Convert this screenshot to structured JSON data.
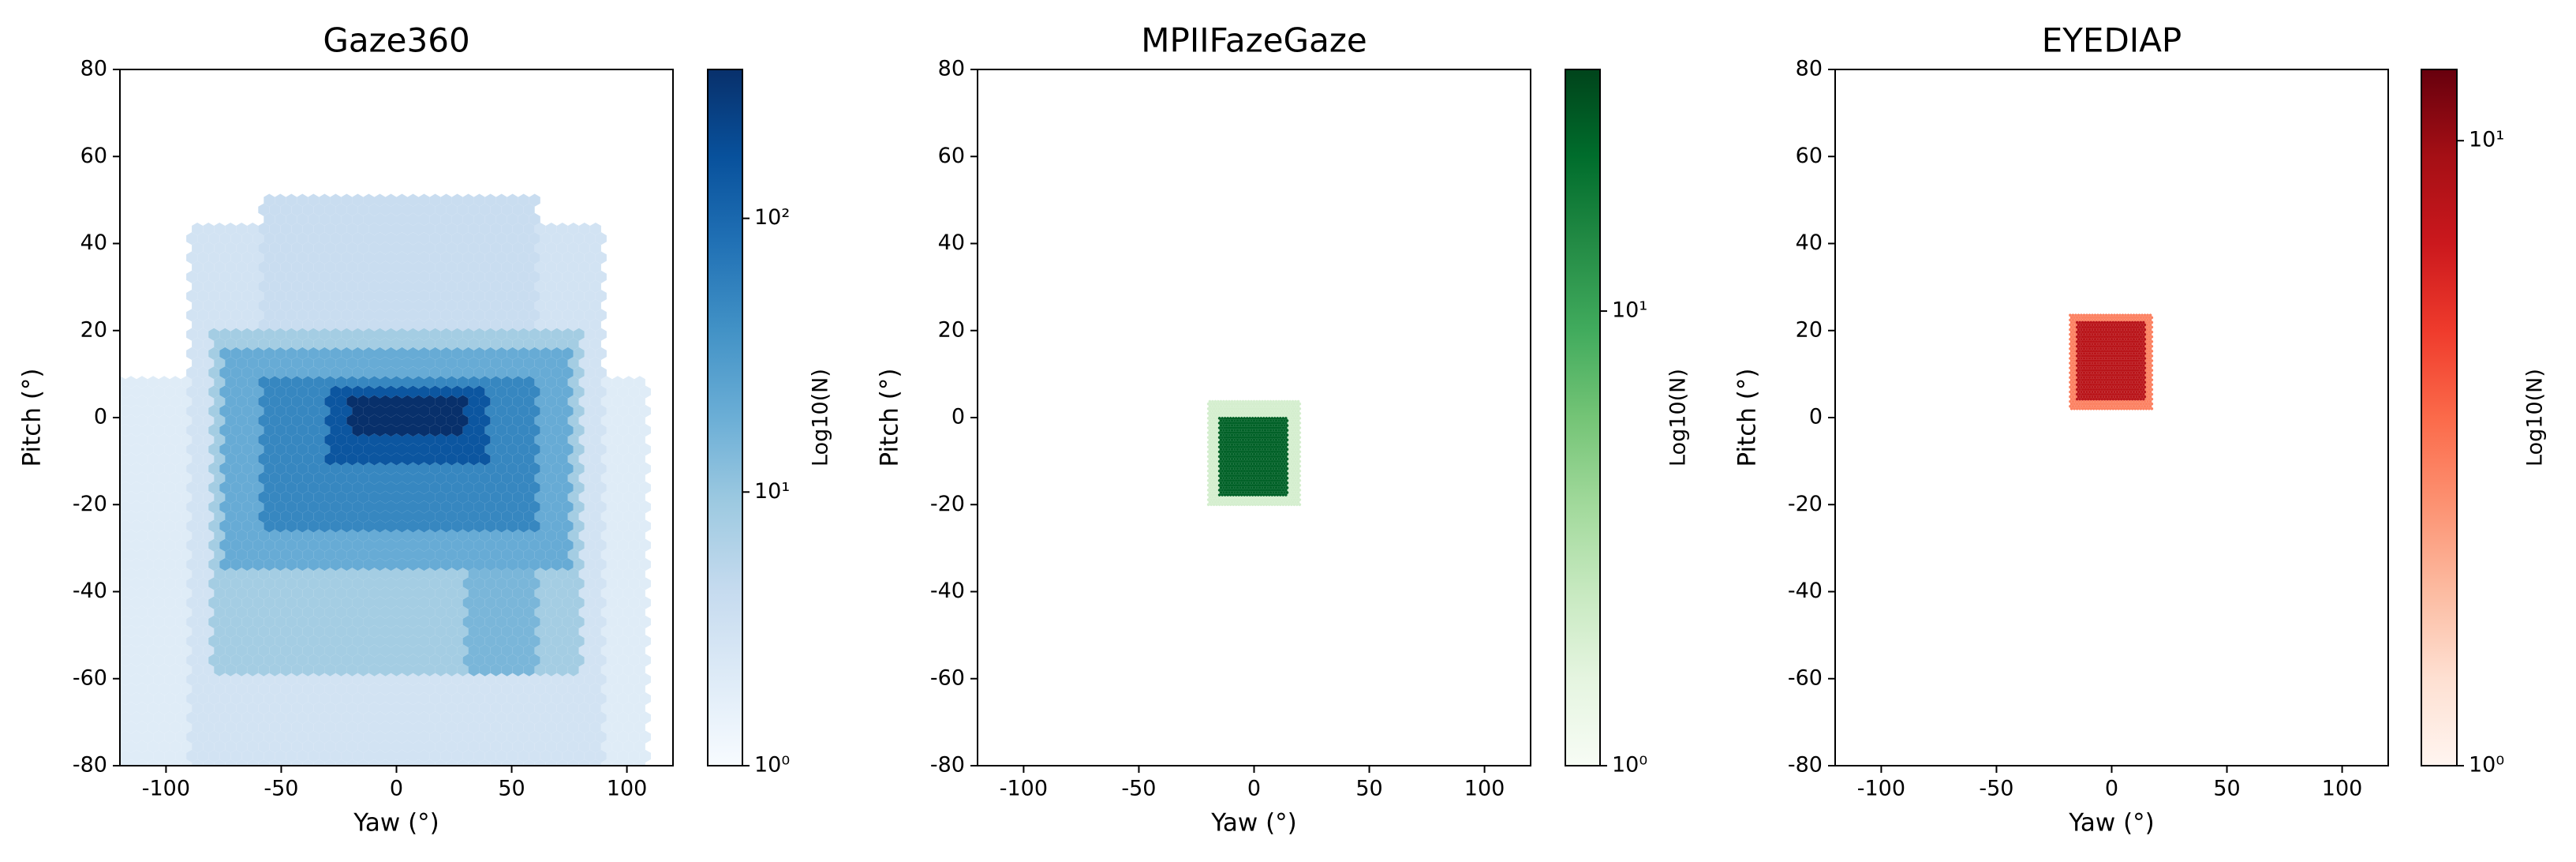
{
  "chart_data": [
    {
      "type": "hexbin",
      "title": "Gaze360",
      "x_label": "Yaw (°)",
      "y_label": "Pitch (°)",
      "xlim": [
        -120,
        120
      ],
      "ylim": [
        -80,
        80
      ],
      "xticks": [
        -100,
        -50,
        0,
        50,
        100
      ],
      "yticks": [
        -80,
        -60,
        -40,
        -20,
        0,
        20,
        40,
        60,
        80
      ],
      "gridsize": 50,
      "colorbar": {
        "label": "Log10(N)",
        "scale": "log",
        "lim": [
          1,
          350
        ],
        "ticks": [
          {
            "value": 1,
            "label": "10⁰"
          },
          {
            "value": 10,
            "label": "10¹"
          },
          {
            "value": 100,
            "label": "10²"
          }
        ],
        "colormap": [
          "#f7fbff",
          "#deebf7",
          "#c6dbef",
          "#9ecae1",
          "#6baed6",
          "#4292c6",
          "#2171b5",
          "#08519c",
          "#08306b"
        ]
      },
      "regions": [
        {
          "x": [
            -120,
            110
          ],
          "y": [
            -80,
            10
          ],
          "count": 2
        },
        {
          "x": [
            -90,
            90
          ],
          "y": [
            -80,
            45
          ],
          "count": 3
        },
        {
          "x": [
            -60,
            60
          ],
          "y": [
            10,
            50
          ],
          "count": 4
        },
        {
          "x": [
            -80,
            80
          ],
          "y": [
            -60,
            20
          ],
          "count": 8
        },
        {
          "x": [
            30,
            60
          ],
          "y": [
            -60,
            -20
          ],
          "count": 15
        },
        {
          "x": [
            -75,
            75
          ],
          "y": [
            -35,
            15
          ],
          "count": 20
        },
        {
          "x": [
            -60,
            60
          ],
          "y": [
            -25,
            10
          ],
          "count": 50
        },
        {
          "x": [
            -30,
            40
          ],
          "y": [
            -10,
            8
          ],
          "count": 150
        },
        {
          "x": [
            -20,
            30
          ],
          "y": [
            -3,
            5
          ],
          "count": 350
        }
      ]
    },
    {
      "type": "hexbin",
      "title": "MPIIFazeGaze",
      "x_label": "Yaw (°)",
      "y_label": "Pitch (°)",
      "xlim": [
        -120,
        120
      ],
      "ylim": [
        -80,
        80
      ],
      "xticks": [
        -100,
        -50,
        0,
        50,
        100
      ],
      "yticks": [
        -80,
        -60,
        -40,
        -20,
        0,
        20,
        40,
        60,
        80
      ],
      "gridsize": 200,
      "colorbar": {
        "label": "Log10(N)",
        "scale": "log",
        "lim": [
          1,
          34
        ],
        "ticks": [
          {
            "value": 1,
            "label": "10⁰"
          },
          {
            "value": 10,
            "label": "10¹"
          }
        ],
        "colormap": [
          "#f7fcf5",
          "#e5f5e0",
          "#c7e9c0",
          "#a1d99b",
          "#74c476",
          "#41ab5d",
          "#238b45",
          "#006d2c",
          "#00441b"
        ]
      },
      "regions": [
        {
          "x": [
            -20,
            20
          ],
          "y": [
            -20,
            4
          ],
          "count": 2
        },
        {
          "x": [
            -15,
            15
          ],
          "y": [
            -18,
            0
          ],
          "count": 25
        }
      ]
    },
    {
      "type": "hexbin",
      "title": "EYEDIAP",
      "x_label": "Yaw (°)",
      "y_label": "Pitch (°)",
      "xlim": [
        -120,
        120
      ],
      "ylim": [
        -80,
        80
      ],
      "xticks": [
        -100,
        -50,
        0,
        50,
        100
      ],
      "yticks": [
        -80,
        -60,
        -40,
        -20,
        0,
        20,
        40,
        60,
        80
      ],
      "gridsize": 200,
      "colorbar": {
        "label": "Log10(N)",
        "scale": "log",
        "lim": [
          1,
          13
        ],
        "ticks": [
          {
            "value": 1,
            "label": "10⁰"
          },
          {
            "value": 10,
            "label": "10¹"
          }
        ],
        "colormap": [
          "#fff5f0",
          "#fee0d2",
          "#fcbba1",
          "#fc9272",
          "#fb6a4a",
          "#ef3b2c",
          "#cb181d",
          "#a50f15",
          "#67000d"
        ]
      },
      "regions": [
        {
          "x": [
            -18,
            18
          ],
          "y": [
            2,
            24
          ],
          "count": 3
        },
        {
          "x": [
            -15,
            15
          ],
          "y": [
            4,
            22
          ],
          "count": 8
        }
      ]
    }
  ]
}
